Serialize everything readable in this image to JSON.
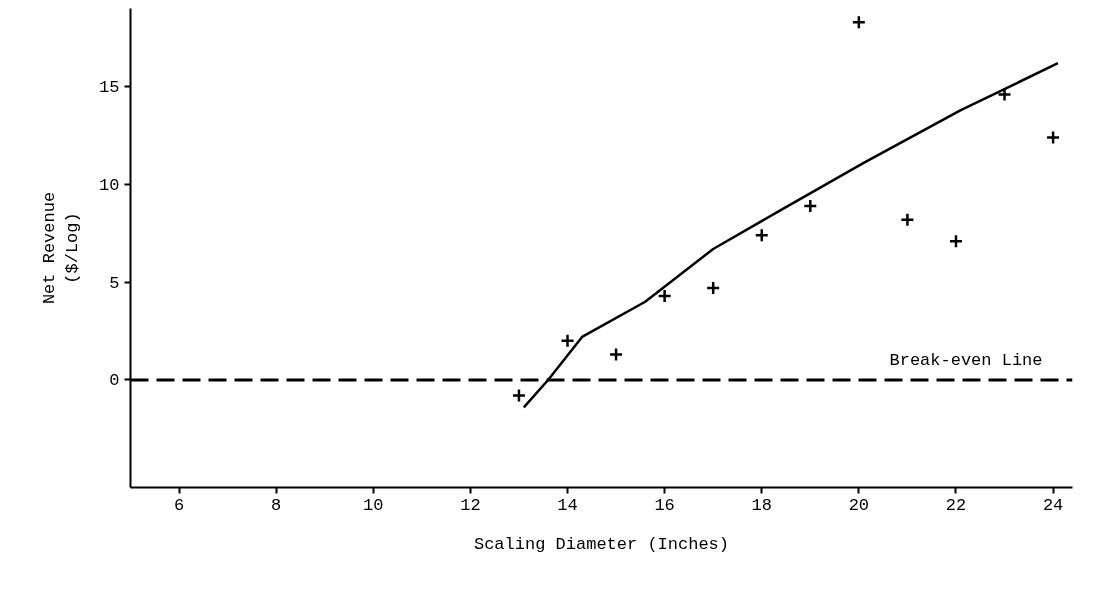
{
  "chart_data": {
    "type": "scatter",
    "xlabel": "Scaling Diameter (Inches)",
    "ylabel": "Net Revenue\n($/Log)",
    "xlim": [
      5,
      24.4
    ],
    "ylim": [
      -5.5,
      19
    ],
    "xticks": [
      6,
      8,
      10,
      12,
      14,
      16,
      18,
      20,
      22,
      24
    ],
    "yticks": [
      0,
      5,
      10,
      15
    ],
    "grid": false,
    "series": [
      {
        "marker": "cross",
        "color": "#000000",
        "x": [
          13,
          14,
          15,
          16,
          17,
          18,
          19,
          20,
          21,
          22,
          23,
          24
        ],
        "values": [
          -0.8,
          2.0,
          1.3,
          4.3,
          4.7,
          7.4,
          8.9,
          18.3,
          8.2,
          7.1,
          14.6,
          12.4
        ]
      },
      {
        "type": "line",
        "marker": "none",
        "color": "#000000",
        "line_style": "solid",
        "x": [
          13.1,
          13.6,
          14.3,
          15.6,
          17.0,
          18.4,
          20.1,
          22.1,
          24.1
        ],
        "values": [
          -1.4,
          0,
          2.2,
          4.0,
          6.7,
          8.7,
          11.1,
          13.8,
          16.2
        ]
      }
    ],
    "ref_lines": [
      {
        "axis": "y",
        "value": 0,
        "label": "Break-even Line",
        "color": "#000000",
        "line_style": "dashed"
      }
    ]
  }
}
